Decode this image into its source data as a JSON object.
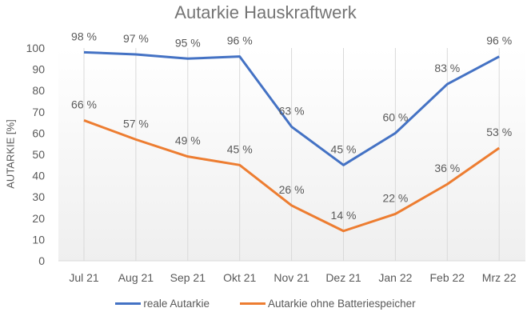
{
  "chart_data": {
    "type": "line",
    "title": "Autarkie Hauskraftwerk",
    "xlabel": "",
    "ylabel": "AUTARKIE [%]",
    "ylim": [
      0,
      100
    ],
    "yticks": [
      0,
      10,
      20,
      30,
      40,
      50,
      60,
      70,
      80,
      90,
      100
    ],
    "categories": [
      "Jul 21",
      "Aug 21",
      "Sep 21",
      "Okt 21",
      "Nov 21",
      "Dez 21",
      "Jan 22",
      "Feb 22",
      "Mrz 22"
    ],
    "series": [
      {
        "name": "reale Autarkie",
        "color": "#4472C4",
        "values": [
          98,
          97,
          95,
          96,
          63,
          45,
          60,
          83,
          96
        ],
        "labels": [
          "98 %",
          "97 %",
          "95 %",
          "96 %",
          "63 %",
          "45 %",
          "60 %",
          "83 %",
          "96 %"
        ]
      },
      {
        "name": "Autarkie ohne Batteriespeicher",
        "color": "#ED7D31",
        "values": [
          66,
          57,
          49,
          45,
          26,
          14,
          22,
          36,
          53
        ],
        "labels": [
          "66 %",
          "57 %",
          "49 %",
          "45 %",
          "26 %",
          "14 %",
          "22 %",
          "36 %",
          "53 %"
        ]
      }
    ],
    "grid": "vertical",
    "legend_position": "bottom"
  }
}
